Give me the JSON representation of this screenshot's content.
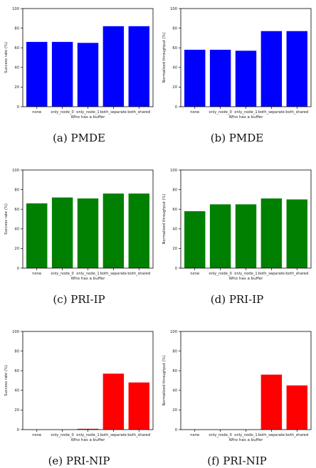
{
  "chart_data": [
    {
      "type": "bar",
      "categories": [
        "none",
        "only_node_0",
        "only_node_1",
        "both_separate",
        "both_shared"
      ],
      "values": [
        66,
        66,
        65,
        82,
        82
      ],
      "xlabel": "Who has a buffer",
      "ylabel": "Success rate (%)",
      "ylim": [
        0,
        100
      ],
      "yticks": [
        0,
        20,
        40,
        60,
        80,
        100
      ],
      "color": "#0000ff",
      "caption": "(a)  PMDE"
    },
    {
      "type": "bar",
      "categories": [
        "none",
        "only_node_0",
        "only_node_1",
        "both_separate",
        "both_shared"
      ],
      "values": [
        58,
        58,
        57,
        77,
        77
      ],
      "xlabel": "Who has a buffer",
      "ylabel": "Normalized throughput (%)",
      "ylim": [
        0,
        100
      ],
      "yticks": [
        0,
        20,
        40,
        60,
        80,
        100
      ],
      "color": "#0000ff",
      "caption": "(b)  PMDE"
    },
    {
      "type": "bar",
      "categories": [
        "none",
        "only_node_0",
        "only_node_1",
        "both_separate",
        "both_shared"
      ],
      "values": [
        66,
        72,
        71,
        76,
        76
      ],
      "xlabel": "Who has a buffer",
      "ylabel": "Success rate (%)",
      "ylim": [
        0,
        100
      ],
      "yticks": [
        0,
        20,
        40,
        60,
        80,
        100
      ],
      "color": "#008000",
      "caption": "(c)  PRI-IP"
    },
    {
      "type": "bar",
      "categories": [
        "none",
        "only_node_0",
        "only_node_1",
        "both_separate",
        "both_shared"
      ],
      "values": [
        58,
        65,
        65,
        71,
        70
      ],
      "xlabel": "Who has a buffer",
      "ylabel": "Normalized throughput (%)",
      "ylim": [
        0,
        100
      ],
      "yticks": [
        0,
        20,
        40,
        60,
        80,
        100
      ],
      "color": "#008000",
      "caption": "(d)  PRI-IP"
    },
    {
      "type": "bar",
      "categories": [
        "none",
        "only_node_0",
        "only_node_1",
        "both_separate",
        "both_shared"
      ],
      "values": [
        0,
        0,
        0.8,
        57,
        48
      ],
      "xlabel": "Who has a buffer",
      "ylabel": "Success rate (%)",
      "ylim": [
        0,
        100
      ],
      "yticks": [
        0,
        20,
        40,
        60,
        80,
        100
      ],
      "color": "#ff0000",
      "caption": "(e)  PRI-NIP"
    },
    {
      "type": "bar",
      "categories": [
        "none",
        "only_node_0",
        "only_node_1",
        "both_separate",
        "both_shared"
      ],
      "values": [
        0,
        0,
        0,
        56,
        45
      ],
      "xlabel": "Who has a buffer",
      "ylabel": "Normalized throughput (%)",
      "ylim": [
        0,
        100
      ],
      "yticks": [
        0,
        20,
        40,
        60,
        80,
        100
      ],
      "color": "#ff0000",
      "caption": "(f)  PRI-NIP"
    }
  ]
}
